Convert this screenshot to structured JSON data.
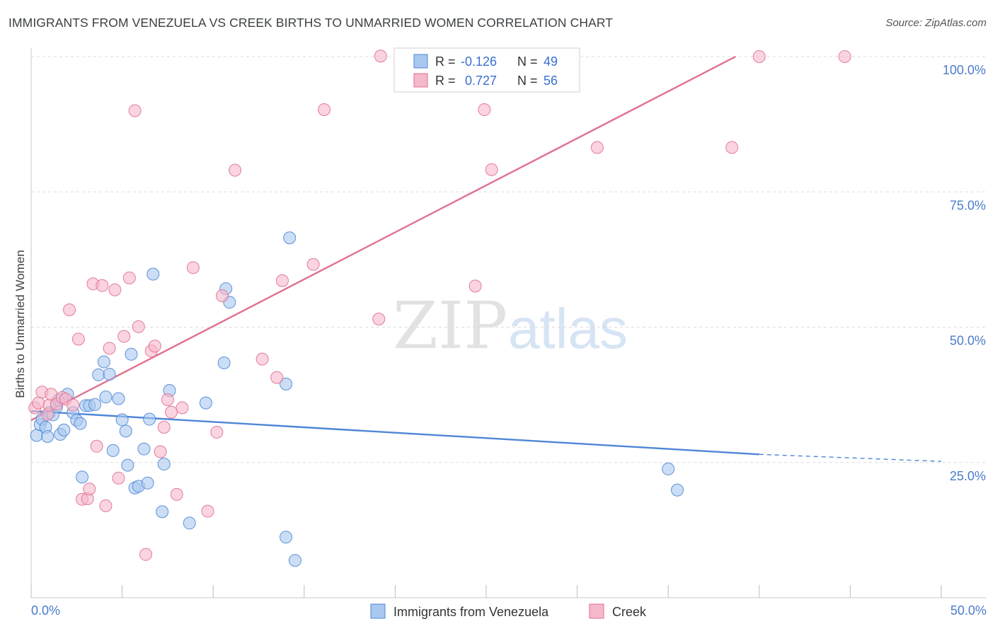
{
  "title": "IMMIGRANTS FROM VENEZUELA VS CREEK BIRTHS TO UNMARRIED WOMEN CORRELATION CHART",
  "source": "Source: ZipAtlas.com",
  "watermark": {
    "zip": "ZIP",
    "atlas": "atlas"
  },
  "legend_top": {
    "r_label": "R =",
    "n_label": "N =",
    "rows": [
      {
        "r": "-0.126",
        "n": "49",
        "color": "#a9c8ef"
      },
      {
        "r": "0.727",
        "n": "56",
        "color": "#f6b8cb"
      }
    ]
  },
  "chart_data": {
    "type": "scatter",
    "title": "IMMIGRANTS FROM VENEZUELA VS CREEK BIRTHS TO UNMARRIED WOMEN CORRELATION CHART",
    "xlabel": "",
    "ylabel": "Births to Unmarried Women",
    "xlim": [
      0,
      50
    ],
    "ylim": [
      0,
      100
    ],
    "x_tick_labels": [
      "0.0%",
      "50.0%"
    ],
    "y_ticks": [
      25,
      50,
      75,
      100
    ],
    "y_tick_labels": [
      "25.0%",
      "50.0%",
      "75.0%",
      "100.0%"
    ],
    "grid": true,
    "legend": "bottom-center",
    "series": [
      {
        "name": "Immigrants from Venezuela",
        "color": "#4f86d6",
        "fill": "#a9c8ef",
        "r": -0.126,
        "n": 49,
        "trend": {
          "x0": 0,
          "y0": 34.5,
          "x1": 40,
          "y1": 26.5,
          "dashed_to": 50,
          "dashed_y": 25.2
        },
        "points": [
          [
            0.3,
            30
          ],
          [
            0.5,
            32
          ],
          [
            0.6,
            33
          ],
          [
            0.8,
            31.5
          ],
          [
            0.9,
            29.8
          ],
          [
            1.0,
            34.2
          ],
          [
            1.2,
            33.8
          ],
          [
            1.4,
            35.3
          ],
          [
            1.5,
            36.5
          ],
          [
            1.6,
            30.2
          ],
          [
            1.8,
            31.0
          ],
          [
            2.0,
            37.6
          ],
          [
            2.3,
            34.2
          ],
          [
            2.5,
            32.8
          ],
          [
            2.7,
            32.2
          ],
          [
            2.8,
            22.3
          ],
          [
            3.0,
            35.5
          ],
          [
            3.2,
            35.5
          ],
          [
            3.5,
            35.7
          ],
          [
            3.7,
            41.2
          ],
          [
            4.0,
            43.6
          ],
          [
            4.1,
            37.1
          ],
          [
            4.3,
            41.3
          ],
          [
            4.5,
            27.2
          ],
          [
            4.8,
            36.8
          ],
          [
            5.0,
            32.9
          ],
          [
            5.2,
            30.8
          ],
          [
            5.3,
            24.5
          ],
          [
            5.5,
            45.0
          ],
          [
            5.7,
            20.3
          ],
          [
            5.9,
            20.6
          ],
          [
            6.2,
            27.5
          ],
          [
            6.4,
            21.2
          ],
          [
            6.5,
            33.0
          ],
          [
            6.7,
            59.8
          ],
          [
            7.2,
            15.9
          ],
          [
            7.3,
            24.7
          ],
          [
            7.6,
            38.3
          ],
          [
            8.7,
            13.8
          ],
          [
            9.6,
            36.0
          ],
          [
            10.6,
            43.4
          ],
          [
            10.7,
            57.1
          ],
          [
            10.9,
            54.6
          ],
          [
            14.0,
            39.5
          ],
          [
            14.2,
            66.5
          ],
          [
            14.0,
            11.2
          ],
          [
            14.5,
            6.9
          ],
          [
            35.0,
            23.8
          ],
          [
            35.5,
            19.9
          ]
        ]
      },
      {
        "name": "Creek",
        "color": "#e0718f",
        "fill": "#f6b8cb",
        "r": 0.727,
        "n": 56,
        "trend": {
          "x0": 0,
          "y0": 32.8,
          "x1": 38.7,
          "y1": 100
        },
        "points": [
          [
            0.2,
            35.1
          ],
          [
            0.4,
            36.0
          ],
          [
            0.6,
            38.0
          ],
          [
            0.9,
            33.9
          ],
          [
            1.0,
            35.6
          ],
          [
            1.1,
            37.6
          ],
          [
            1.4,
            35.8
          ],
          [
            1.7,
            37.0
          ],
          [
            1.9,
            36.7
          ],
          [
            2.1,
            53.2
          ],
          [
            2.3,
            35.6
          ],
          [
            2.6,
            47.8
          ],
          [
            2.8,
            18.2
          ],
          [
            3.1,
            18.3
          ],
          [
            3.2,
            20.1
          ],
          [
            3.4,
            58.0
          ],
          [
            3.6,
            28.0
          ],
          [
            3.9,
            57.7
          ],
          [
            4.1,
            17.0
          ],
          [
            4.3,
            46.1
          ],
          [
            4.6,
            56.9
          ],
          [
            4.8,
            22.1
          ],
          [
            5.1,
            48.3
          ],
          [
            5.4,
            59.1
          ],
          [
            5.7,
            90.0
          ],
          [
            5.9,
            50.1
          ],
          [
            6.3,
            8.0
          ],
          [
            6.6,
            45.6
          ],
          [
            6.8,
            46.5
          ],
          [
            7.1,
            27.0
          ],
          [
            7.3,
            31.5
          ],
          [
            7.5,
            36.6
          ],
          [
            7.7,
            34.3
          ],
          [
            8.0,
            19.1
          ],
          [
            8.3,
            35.1
          ],
          [
            8.9,
            61.0
          ],
          [
            9.7,
            16.0
          ],
          [
            10.2,
            30.6
          ],
          [
            10.5,
            55.8
          ],
          [
            11.2,
            79.0
          ],
          [
            12.7,
            44.1
          ],
          [
            13.5,
            40.7
          ],
          [
            13.8,
            58.6
          ],
          [
            15.5,
            61.6
          ],
          [
            16.1,
            90.2
          ],
          [
            19.1,
            51.5
          ],
          [
            19.2,
            100.1
          ],
          [
            23.5,
            100.0
          ],
          [
            24.4,
            57.6
          ],
          [
            24.9,
            90.2
          ],
          [
            25.3,
            79.1
          ],
          [
            27.6,
            100.0
          ],
          [
            31.1,
            83.2
          ],
          [
            38.5,
            83.2
          ],
          [
            40.0,
            100.0
          ],
          [
            44.7,
            100.0
          ]
        ]
      }
    ]
  },
  "bottom_legend": [
    {
      "label": "Immigrants from Venezuela",
      "color": "#a9c8ef",
      "stroke": "#4f86d6"
    },
    {
      "label": "Creek",
      "color": "#f6b8cb",
      "stroke": "#e0718f"
    }
  ]
}
